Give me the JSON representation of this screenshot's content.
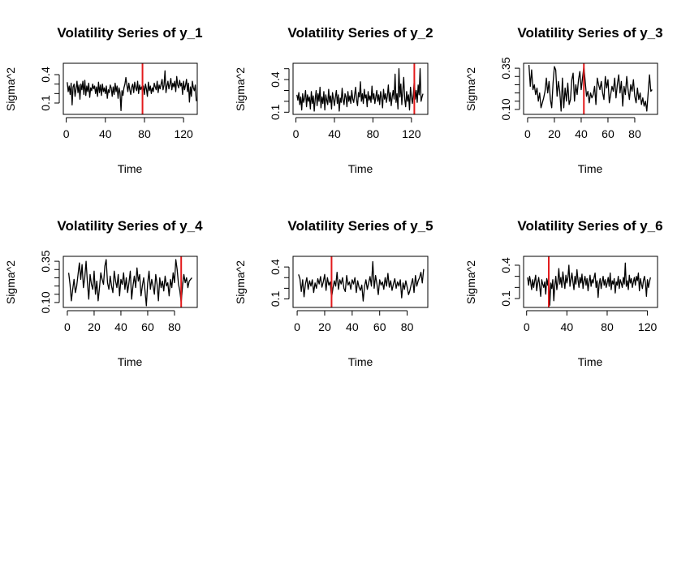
{
  "figure": {
    "background": "#ffffff",
    "line_color": "#000000",
    "marker_color": "#e31a1c"
  },
  "chart_data": [
    {
      "type": "line",
      "title": "Volatility Series of y_1",
      "xlabel": "Time",
      "ylabel": "Sigma^2",
      "xlim": [
        -3,
        134
      ],
      "ylim": [
        -0.02,
        0.52
      ],
      "xticks": [
        0,
        40,
        80,
        120
      ],
      "yticks": [
        0.1,
        0.4
      ],
      "yticklabels": [
        "0.1",
        "0.4"
      ],
      "yticks_minor": [
        0.2,
        0.3
      ],
      "changepoint": 78,
      "series": [
        {
          "values": [
            0.32,
            0.22,
            0.28,
            0.19,
            0.31,
            0.08,
            0.27,
            0.3,
            0.17,
            0.25,
            0.33,
            0.21,
            0.29,
            0.14,
            0.3,
            0.24,
            0.33,
            0.19,
            0.34,
            0.18,
            0.28,
            0.22,
            0.31,
            0.16,
            0.26,
            0.23,
            0.3,
            0.25,
            0.28,
            0.2,
            0.27,
            0.17,
            0.32,
            0.21,
            0.29,
            0.18,
            0.3,
            0.22,
            0.26,
            0.2,
            0.28,
            0.15,
            0.24,
            0.21,
            0.29,
            0.26,
            0.17,
            0.27,
            0.19,
            0.31,
            0.22,
            0.28,
            0.15,
            0.26,
            0.21,
            0.02,
            0.23,
            0.18,
            0.26,
            0.3,
            0.37,
            0.29,
            0.22,
            0.31,
            0.24,
            0.19,
            0.27,
            0.3,
            0.21,
            0.32,
            0.26,
            0.23,
            0.33,
            0.2,
            0.29,
            0.24,
            0.27,
            0.22,
            0.28,
            0.19,
            0.3,
            0.25,
            0.17,
            0.32,
            0.23,
            0.28,
            0.2,
            0.26,
            0.22,
            0.31,
            0.27,
            0.24,
            0.33,
            0.21,
            0.29,
            0.25,
            0.3,
            0.35,
            0.24,
            0.29,
            0.44,
            0.21,
            0.28,
            0.33,
            0.25,
            0.3,
            0.36,
            0.24,
            0.31,
            0.27,
            0.33,
            0.22,
            0.38,
            0.29,
            0.26,
            0.34,
            0.28,
            0.31,
            0.19,
            0.33,
            0.24,
            0.29,
            0.35,
            0.22,
            0.31,
            0.11,
            0.27,
            0.17,
            0.33,
            0.26,
            0.23,
            0.29,
            0.12
          ]
        }
      ]
    },
    {
      "type": "line",
      "title": "Volatility Series of y_2",
      "xlabel": "Time",
      "ylabel": "Sigma^2",
      "xlim": [
        -3,
        137
      ],
      "ylim": [
        0.08,
        0.55
      ],
      "xticks": [
        0,
        40,
        80,
        120
      ],
      "yticks": [
        0.1,
        0.4
      ],
      "yticklabels": [
        "0.1",
        "0.4"
      ],
      "yticks_minor": [
        0.2,
        0.3,
        0.5
      ],
      "changepoint": 123,
      "series": [
        {
          "values": [
            0.26,
            0.21,
            0.28,
            0.17,
            0.24,
            0.12,
            0.27,
            0.19,
            0.23,
            0.3,
            0.15,
            0.26,
            0.2,
            0.24,
            0.13,
            0.29,
            0.18,
            0.25,
            0.11,
            0.22,
            0.3,
            0.16,
            0.27,
            0.2,
            0.33,
            0.14,
            0.24,
            0.18,
            0.29,
            0.12,
            0.26,
            0.21,
            0.17,
            0.31,
            0.19,
            0.25,
            0.13,
            0.28,
            0.22,
            0.16,
            0.24,
            0.3,
            0.18,
            0.26,
            0.11,
            0.23,
            0.19,
            0.32,
            0.21,
            0.17,
            0.27,
            0.24,
            0.15,
            0.29,
            0.2,
            0.25,
            0.18,
            0.3,
            0.22,
            0.19,
            0.26,
            0.33,
            0.21,
            0.16,
            0.28,
            0.24,
            0.38,
            0.2,
            0.27,
            0.18,
            0.31,
            0.23,
            0.26,
            0.15,
            0.29,
            0.21,
            0.25,
            0.19,
            0.34,
            0.22,
            0.27,
            0.18,
            0.24,
            0.3,
            0.2,
            0.26,
            0.17,
            0.29,
            0.23,
            0.14,
            0.31,
            0.22,
            0.27,
            0.19,
            0.25,
            0.35,
            0.2,
            0.28,
            0.16,
            0.24,
            0.3,
            0.22,
            0.45,
            0.19,
            0.27,
            0.13,
            0.5,
            0.24,
            0.36,
            0.17,
            0.3,
            0.42,
            0.22,
            0.15,
            0.29,
            0.2,
            0.26,
            0.12,
            0.33,
            0.24,
            0.18,
            0.27,
            0.4,
            0.22,
            0.3,
            0.19,
            0.35,
            0.26,
            0.5,
            0.2,
            0.24,
            0.27
          ]
        }
      ]
    },
    {
      "type": "line",
      "title": "Volatility Series of y_3",
      "xlabel": "Time",
      "ylabel": "Sigma^2",
      "xlim": [
        -3,
        97
      ],
      "ylim": [
        0.07,
        0.38
      ],
      "xticks": [
        0,
        20,
        40,
        60,
        80
      ],
      "yticks": [
        0.1,
        0.35
      ],
      "yticklabels": [
        "0.10",
        "0.35"
      ],
      "yticks_minor": [
        0.15,
        0.2,
        0.25,
        0.3
      ],
      "changepoint": 42,
      "series": [
        {
          "values": [
            0.37,
            0.24,
            0.34,
            0.22,
            0.25,
            0.19,
            0.23,
            0.15,
            0.2,
            0.11,
            0.14,
            0.17,
            0.21,
            0.29,
            0.2,
            0.27,
            0.16,
            0.11,
            0.26,
            0.36,
            0.34,
            0.18,
            0.27,
            0.21,
            0.09,
            0.29,
            0.11,
            0.23,
            0.15,
            0.26,
            0.13,
            0.16,
            0.28,
            0.32,
            0.15,
            0.25,
            0.19,
            0.28,
            0.33,
            0.22,
            0.29,
            0.36,
            0.27,
            0.18,
            0.21,
            0.14,
            0.2,
            0.17,
            0.19,
            0.24,
            0.13,
            0.29,
            0.25,
            0.22,
            0.27,
            0.2,
            0.16,
            0.3,
            0.23,
            0.28,
            0.14,
            0.19,
            0.24,
            0.21,
            0.29,
            0.17,
            0.25,
            0.31,
            0.2,
            0.27,
            0.12,
            0.24,
            0.19,
            0.3,
            0.22,
            0.16,
            0.25,
            0.21,
            0.28,
            0.18,
            0.14,
            0.23,
            0.16,
            0.2,
            0.13,
            0.17,
            0.12,
            0.15,
            0.09,
            0.2,
            0.31,
            0.21,
            0.22
          ]
        }
      ]
    },
    {
      "type": "line",
      "title": "Volatility Series of y_4",
      "xlabel": "Time",
      "ylabel": "Sigma^2",
      "xlim": [
        -3,
        97
      ],
      "ylim": [
        0.07,
        0.38
      ],
      "xticks": [
        0,
        20,
        40,
        60,
        80
      ],
      "yticks": [
        0.1,
        0.35
      ],
      "yticklabels": [
        "0.10",
        "0.35"
      ],
      "yticks_minor": [
        0.15,
        0.2,
        0.25,
        0.3
      ],
      "changepoint": 85,
      "series": [
        {
          "values": [
            0.28,
            0.21,
            0.11,
            0.18,
            0.24,
            0.16,
            0.2,
            0.27,
            0.34,
            0.24,
            0.33,
            0.19,
            0.25,
            0.35,
            0.22,
            0.12,
            0.27,
            0.21,
            0.18,
            0.29,
            0.15,
            0.23,
            0.11,
            0.19,
            0.28,
            0.24,
            0.21,
            0.32,
            0.36,
            0.22,
            0.18,
            0.26,
            0.2,
            0.16,
            0.29,
            0.23,
            0.19,
            0.27,
            0.14,
            0.24,
            0.21,
            0.28,
            0.18,
            0.25,
            0.16,
            0.22,
            0.29,
            0.12,
            0.2,
            0.26,
            0.19,
            0.31,
            0.23,
            0.27,
            0.14,
            0.2,
            0.25,
            0.17,
            0.08,
            0.22,
            0.29,
            0.18,
            0.24,
            0.2,
            0.15,
            0.27,
            0.21,
            0.11,
            0.25,
            0.19,
            0.23,
            0.17,
            0.26,
            0.2,
            0.22,
            0.14,
            0.24,
            0.19,
            0.28,
            0.22,
            0.36,
            0.3,
            0.21,
            0.17,
            0.1,
            0.2,
            0.27,
            0.22,
            0.25,
            0.19,
            0.23,
            0.24,
            0.25
          ]
        }
      ]
    },
    {
      "type": "line",
      "title": "Volatility Series of y_5",
      "xlabel": "Time",
      "ylabel": "Sigma^2",
      "xlim": [
        -3,
        95
      ],
      "ylim": [
        0.02,
        0.5
      ],
      "xticks": [
        0,
        20,
        40,
        60,
        80
      ],
      "yticks": [
        0.1,
        0.4
      ],
      "yticklabels": [
        "0.1",
        "0.4"
      ],
      "yticks_minor": [
        0.2,
        0.3
      ],
      "changepoint": 25,
      "series": [
        {
          "values": [
            0.33,
            0.29,
            0.17,
            0.28,
            0.12,
            0.24,
            0.3,
            0.19,
            0.27,
            0.22,
            0.28,
            0.16,
            0.25,
            0.2,
            0.29,
            0.24,
            0.31,
            0.21,
            0.26,
            0.33,
            0.18,
            0.3,
            0.23,
            0.26,
            0.11,
            0.2,
            0.27,
            0.22,
            0.35,
            0.19,
            0.28,
            0.24,
            0.3,
            0.2,
            0.17,
            0.32,
            0.23,
            0.26,
            0.19,
            0.28,
            0.24,
            0.3,
            0.16,
            0.27,
            0.21,
            0.18,
            0.23,
            0.08,
            0.22,
            0.28,
            0.19,
            0.25,
            0.31,
            0.22,
            0.45,
            0.2,
            0.32,
            0.24,
            0.14,
            0.28,
            0.23,
            0.26,
            0.19,
            0.3,
            0.22,
            0.34,
            0.21,
            0.27,
            0.18,
            0.24,
            0.29,
            0.2,
            0.26,
            0.22,
            0.28,
            0.11,
            0.25,
            0.19,
            0.27,
            0.21,
            0.14,
            0.18,
            0.24,
            0.29,
            0.16,
            0.32,
            0.22,
            0.27,
            0.3,
            0.35,
            0.25,
            0.38
          ]
        }
      ]
    },
    {
      "type": "line",
      "title": "Volatility Series of y_6",
      "xlabel": "Time",
      "ylabel": "Sigma^2",
      "xlim": [
        -3,
        130
      ],
      "ylim": [
        0.02,
        0.48
      ],
      "xticks": [
        0,
        40,
        80,
        120
      ],
      "yticks": [
        0.1,
        0.4
      ],
      "yticklabels": [
        "0.1",
        "0.4"
      ],
      "yticks_minor": [
        0.2,
        0.3
      ],
      "changepoint": 22,
      "series": [
        {
          "values": [
            0.29,
            0.22,
            0.3,
            0.25,
            0.18,
            0.27,
            0.2,
            0.26,
            0.31,
            0.17,
            0.24,
            0.29,
            0.21,
            0.12,
            0.27,
            0.23,
            0.2,
            0.25,
            0.14,
            0.28,
            0.22,
            0.31,
            0.04,
            0.24,
            0.19,
            0.27,
            0.08,
            0.22,
            0.3,
            0.18,
            0.25,
            0.37,
            0.23,
            0.29,
            0.2,
            0.34,
            0.26,
            0.19,
            0.31,
            0.24,
            0.29,
            0.4,
            0.21,
            0.27,
            0.33,
            0.25,
            0.18,
            0.3,
            0.23,
            0.36,
            0.27,
            0.2,
            0.29,
            0.24,
            0.32,
            0.19,
            0.26,
            0.3,
            0.22,
            0.28,
            0.17,
            0.25,
            0.31,
            0.21,
            0.27,
            0.24,
            0.29,
            0.33,
            0.2,
            0.26,
            0.11,
            0.23,
            0.28,
            0.19,
            0.25,
            0.3,
            0.22,
            0.27,
            0.2,
            0.24,
            0.29,
            0.21,
            0.33,
            0.18,
            0.26,
            0.23,
            0.28,
            0.15,
            0.25,
            0.22,
            0.3,
            0.19,
            0.27,
            0.24,
            0.2,
            0.29,
            0.23,
            0.42,
            0.21,
            0.26,
            0.18,
            0.31,
            0.24,
            0.28,
            0.2,
            0.25,
            0.29,
            0.22,
            0.3,
            0.26,
            0.33,
            0.17,
            0.28,
            0.23,
            0.19,
            0.26,
            0.3,
            0.24,
            0.12,
            0.27,
            0.2,
            0.25,
            0.29
          ]
        }
      ]
    }
  ]
}
